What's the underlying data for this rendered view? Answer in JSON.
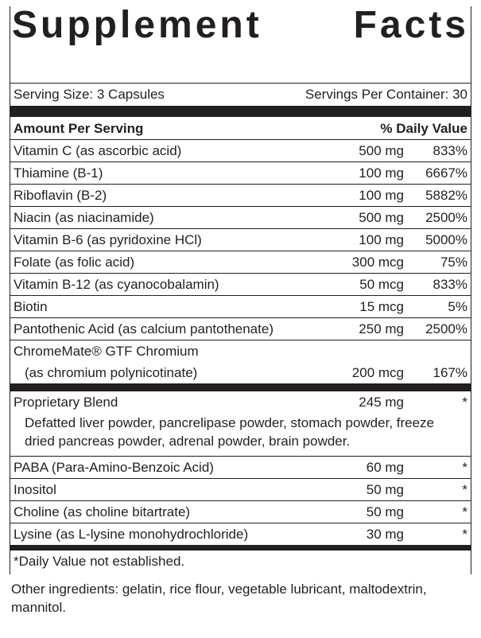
{
  "title": "Supplement Facts",
  "serving_size_label": "Serving Size: 3 Capsules",
  "servings_per_container_label": "Servings Per Container: 30",
  "header_amount": "Amount Per Serving",
  "header_dv": "% Daily Value",
  "rows_top": [
    {
      "name": "Vitamin C (as ascorbic acid)",
      "amount": "500 mg",
      "dv": "833%"
    },
    {
      "name": "Thiamine (B-1)",
      "amount": "100 mg",
      "dv": "6667%"
    },
    {
      "name": "Riboflavin (B-2)",
      "amount": "100 mg",
      "dv": "5882%"
    },
    {
      "name": "Niacin (as niacinamide)",
      "amount": "500 mg",
      "dv": "2500%"
    },
    {
      "name": "Vitamin B-6 (as pyridoxine HCl)",
      "amount": "100 mg",
      "dv": "5000%"
    },
    {
      "name": "Folate (as folic acid)",
      "amount": "300 mcg",
      "dv": "75%"
    },
    {
      "name": "Vitamin B-12 (as cyanocobalamin)",
      "amount": "50 mcg",
      "dv": "833%"
    },
    {
      "name": "Biotin",
      "amount": "15 mcg",
      "dv": "5%"
    },
    {
      "name": "Pantothenic Acid (as calcium pantothenate)",
      "amount": "250 mg",
      "dv": "2500%"
    }
  ],
  "chromium": {
    "line1": "ChromeMate® GTF Chromium",
    "line2": "(as chromium polynicotinate)",
    "amount": "200 mcg",
    "dv": "167%"
  },
  "blend": {
    "name": "Proprietary Blend",
    "amount": "245 mg",
    "dv": "*",
    "desc": "Defatted liver powder, pancrelipase powder, stomach powder, freeze dried pancreas powder, adrenal powder, brain powder."
  },
  "rows_bottom": [
    {
      "name": "PABA (Para-Amino-Benzoic Acid)",
      "amount": "60 mg",
      "dv": "*"
    },
    {
      "name": "Inositol",
      "amount": "50 mg",
      "dv": "*"
    },
    {
      "name": "Choline (as choline bitartrate)",
      "amount": "50 mg",
      "dv": "*"
    },
    {
      "name": "Lysine (as L-lysine monohydrochloride)",
      "amount": "30 mg",
      "dv": "*"
    }
  ],
  "footnote": "*Daily Value not established.",
  "other_ingredients": "Other ingredients: gelatin, rice flour, vegetable lubricant, maltodextrin, mannitol.",
  "colors": {
    "text": "#231f20",
    "rule": "#231f20",
    "background": "#ffffff"
  },
  "font_sizes": {
    "title": 48,
    "body": 17
  }
}
